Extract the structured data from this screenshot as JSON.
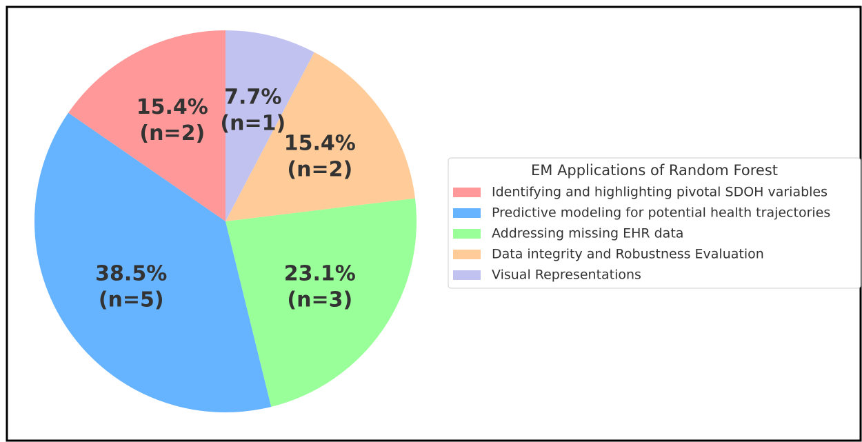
{
  "chart_data": {
    "type": "pie",
    "legend_title": "EM Applications of Random Forest",
    "categories": [
      "Identifying and highlighting pivotal SDOH variables",
      "Predictive modeling for potential health trajectories",
      "Addressing missing EHR data",
      "Data integrity and Robustness Evaluation",
      "Visual Representations"
    ],
    "values": [
      15.4,
      38.5,
      23.1,
      15.4,
      7.7
    ],
    "value_labels": [
      "15.4%",
      "38.5%",
      "23.1%",
      "15.4%",
      "7.7%"
    ],
    "count_labels": [
      "(n=2)",
      "(n=5)",
      "(n=3)",
      "(n=2)",
      "(n=1)"
    ],
    "colors": [
      "#ff9999",
      "#66b3ff",
      "#99ff99",
      "#ffcc99",
      "#c2c2f0"
    ],
    "start_angle": 90,
    "legend": "right"
  }
}
